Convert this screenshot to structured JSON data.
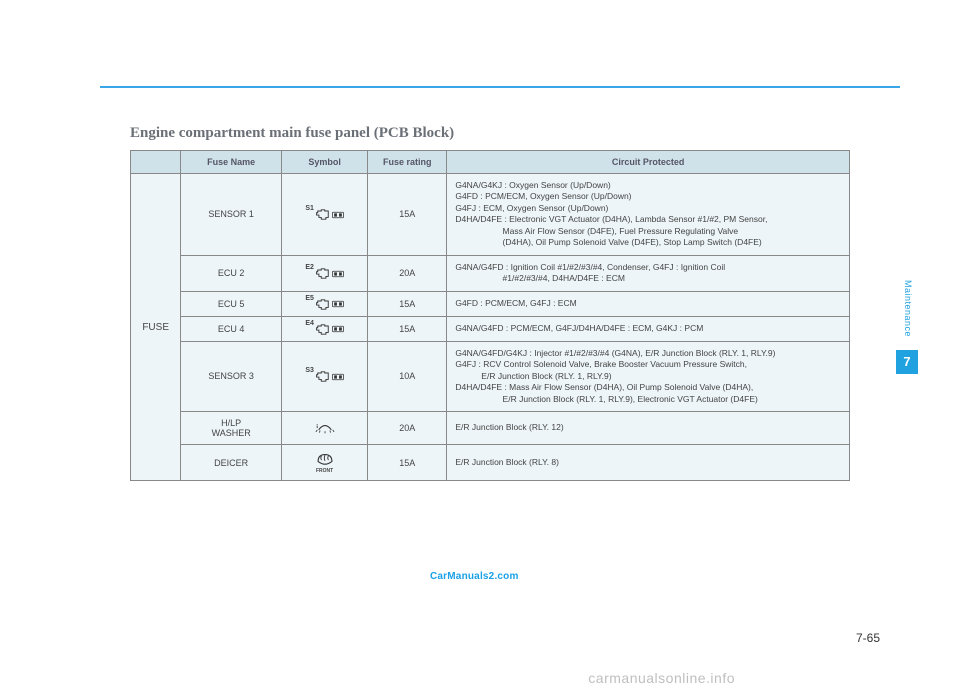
{
  "page": {
    "title": "Engine compartment main fuse panel (PCB Block)",
    "pagenum": "7-65",
    "section_number": "7",
    "section_label": "Maintenance",
    "watermark1": "CarManuals2.com",
    "footer_wm": "carmanualsonline.info"
  },
  "columns": {
    "c1": "",
    "c2": "Fuse Name",
    "c3": "Symbol",
    "c4": "Fuse rating",
    "c5": "Circuit Protected"
  },
  "category": "FUSE",
  "rows": [
    {
      "name": "SENSOR 1",
      "sup": "S1",
      "rating": "15A",
      "circuit": "G4NA/G4KJ : Oxygen Sensor (Up/Down)\nG4FD : PCM/ECM, Oxygen Sensor (Up/Down)\nG4FJ : ECM, Oxygen Sensor (Up/Down)\nD4HA/D4FE : Electronic VGT Actuator (D4HA), Lambda Sensor #1/#2, PM Sensor,\n                    Mass Air Flow Sensor (D4FE), Fuel Pressure Regulating Valve\n                    (D4HA), Oil Pump Solenoid Valve (D4FE), Stop Lamp Switch (D4FE)"
    },
    {
      "name": "ECU 2",
      "sup": "E2",
      "rating": "20A",
      "circuit": "G4NA/G4FD : Ignition Coil #1/#2/#3/#4, Condenser, G4FJ : Ignition Coil\n                    #1/#2/#3/#4, D4HA/D4FE : ECM"
    },
    {
      "name": "ECU 5",
      "sup": "E5",
      "rating": "15A",
      "circuit": "G4FD : PCM/ECM, G4FJ : ECM"
    },
    {
      "name": "ECU 4",
      "sup": "E4",
      "rating": "15A",
      "circuit": "G4NA/G4FD : PCM/ECM, G4FJ/D4HA/D4FE : ECM, G4KJ : PCM"
    },
    {
      "name": "SENSOR 3",
      "sup": "S3",
      "rating": "10A",
      "circuit": "G4NA/G4FD/G4KJ : Injector #1/#2/#3/#4 (G4NA), E/R Junction Block (RLY. 1, RLY.9)\nG4FJ : RCV Control Solenoid Valve, Brake Booster Vacuum Pressure Switch,\n           E/R Junction Block (RLY. 1, RLY.9)\nD4HA/D4FE : Mass Air Flow Sensor (D4HA), Oil Pump Solenoid Valve (D4HA),\n                    E/R Junction Block (RLY. 1, RLY.9), Electronic VGT Actuator (D4FE)"
    },
    {
      "name": "H/LP\nWASHER",
      "sup": "",
      "rating": "20A",
      "circuit": "E/R Junction Block (RLY. 12)",
      "symbol": "washer"
    },
    {
      "name": "DEICER",
      "sup": "",
      "rating": "15A",
      "circuit": "E/R Junction Block (RLY. 8)",
      "symbol": "deicer",
      "deicer_sub": "FRONT"
    }
  ],
  "style": {
    "header_bg": "#cfe2ea",
    "cell_bg": "#edf5f8",
    "border": "#888888",
    "rule": "#3aa5e8",
    "tab_bg": "#1fa2df",
    "wm_color": "#1aa0e6",
    "footer_color": "#bfbfbf",
    "col_widths_pct": [
      7,
      14,
      12,
      11,
      56
    ]
  }
}
